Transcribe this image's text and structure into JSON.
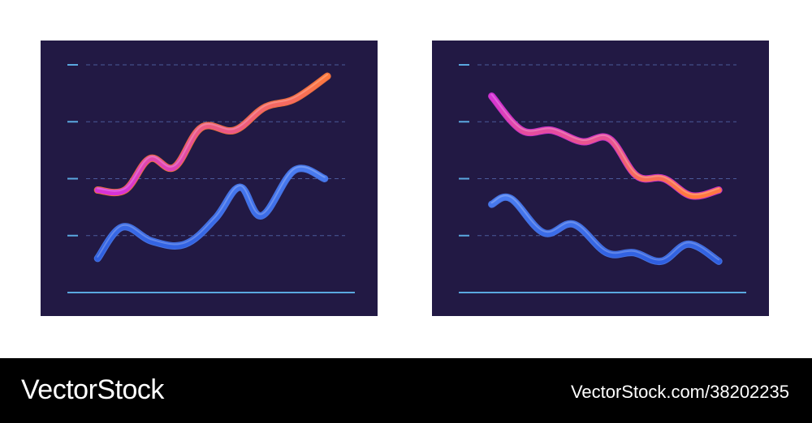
{
  "chart_data": [
    {
      "type": "line",
      "x": [
        0,
        1,
        2,
        3,
        4,
        5,
        6,
        7,
        8,
        9,
        10,
        11,
        12
      ],
      "ylim": [
        0,
        4
      ],
      "grid": true,
      "series": [
        {
          "color_from": "#d633d6",
          "color_to": "#ff7a3d",
          "values": [
            1.8,
            1.8,
            2.35,
            2.2,
            2.9,
            2.85,
            3.25,
            3.4,
            3.8
          ],
          "x": [
            0.6,
            1.6,
            2.5,
            3.4,
            4.4,
            5.6,
            6.7,
            7.8,
            9.0
          ]
        },
        {
          "color_from": "#2f5fe0",
          "color_to": "#4a7cf0",
          "values": [
            0.6,
            1.15,
            0.9,
            0.85,
            1.3,
            1.85,
            1.35,
            2.15,
            2.0
          ],
          "x": [
            0.6,
            1.5,
            2.6,
            3.8,
            4.9,
            5.8,
            6.6,
            7.8,
            8.9
          ]
        }
      ]
    },
    {
      "type": "line",
      "x": [
        0,
        1,
        2,
        3,
        4,
        5,
        6,
        7,
        8,
        9,
        10,
        11,
        12
      ],
      "ylim": [
        0,
        4
      ],
      "grid": true,
      "series": [
        {
          "color_from": "#ff7a3d",
          "color_to": "#d633d6",
          "values": [
            3.45,
            2.85,
            2.85,
            2.65,
            2.7,
            2.05,
            2.0,
            1.7,
            1.8
          ],
          "x": [
            0.7,
            1.8,
            2.9,
            4.0,
            5.0,
            6.0,
            7.0,
            8.0,
            9.0
          ]
        },
        {
          "color_from": "#2f5fe0",
          "color_to": "#4a7cf0",
          "values": [
            1.55,
            1.65,
            1.05,
            1.2,
            0.7,
            0.7,
            0.55,
            0.85,
            0.55
          ],
          "x": [
            0.7,
            1.4,
            2.6,
            3.7,
            4.9,
            5.9,
            6.9,
            7.9,
            9.0
          ]
        }
      ]
    }
  ],
  "colors": {
    "panel_bg": "#221944",
    "grid": "#4b5a9a",
    "tick": "#5aa8e0",
    "baseline": "#5aa8e0"
  },
  "footer": {
    "brand": "VectorStock",
    "image_id": "VectorStock.com/38202235"
  }
}
